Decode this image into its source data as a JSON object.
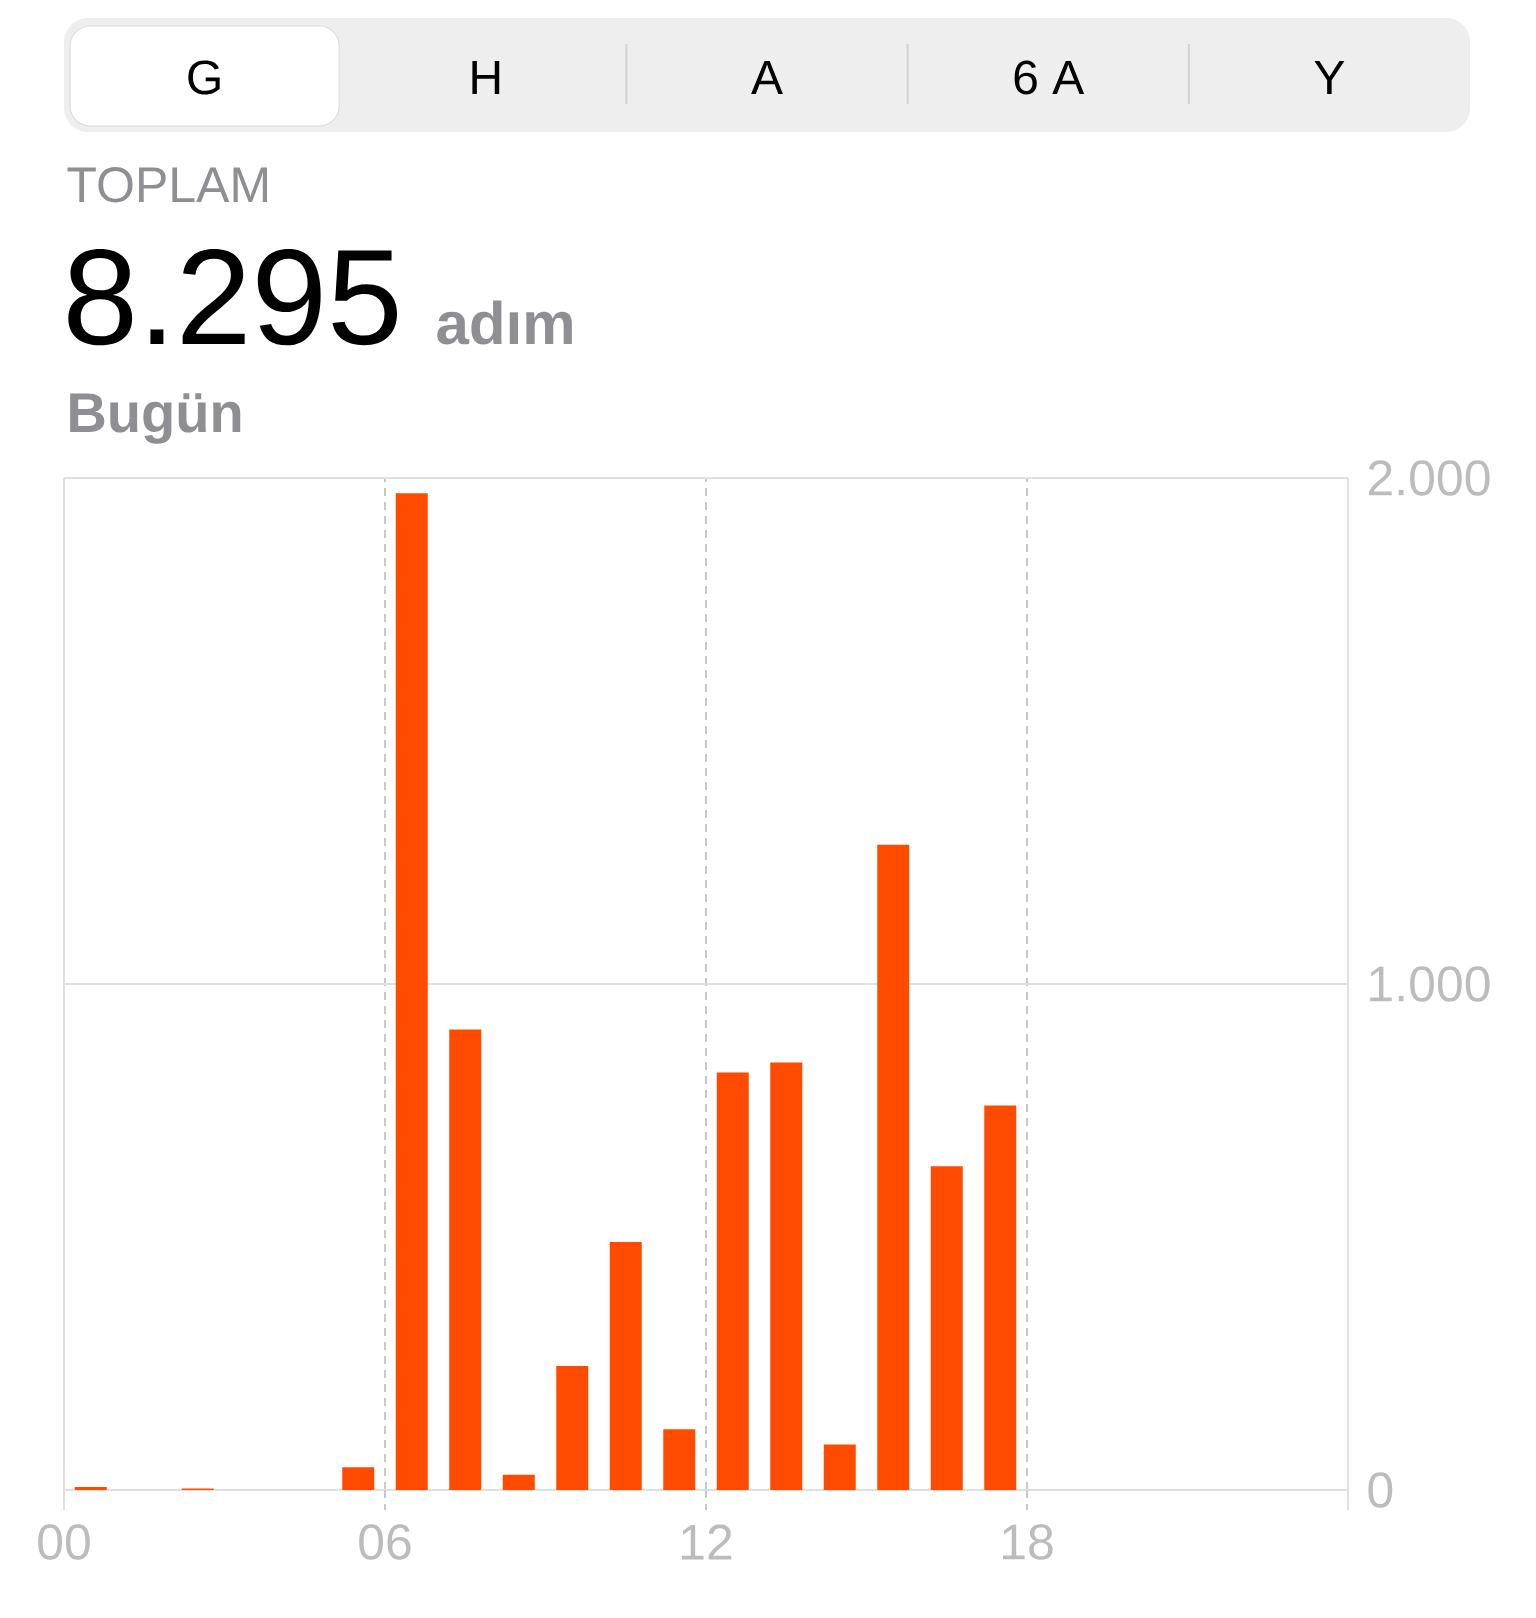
{
  "chart_data": {
    "type": "bar",
    "title": "8.295",
    "subtitle": "Bugün",
    "annotations": [
      "G",
      "H",
      "A",
      "6 A",
      "Y",
      "TOPLAM",
      "adım"
    ],
    "x": [
      0.5,
      2.5,
      5.5,
      6.5,
      7.5,
      8.5,
      9.5,
      10.5,
      11.5,
      12.5,
      13.5,
      14.5,
      15.5,
      16.5,
      17.5
    ],
    "values": [
      6,
      3,
      45,
      1970,
      910,
      30,
      245,
      490,
      120,
      825,
      845,
      90,
      1275,
      640,
      760
    ],
    "color": "#ff4b00",
    "xlim": [
      0,
      24
    ],
    "xticks": [
      {
        "value": 0,
        "label": "00"
      },
      {
        "value": 6,
        "label": "06"
      },
      {
        "value": 12,
        "label": "12"
      },
      {
        "value": 18,
        "label": "18"
      }
    ],
    "ylim": [
      0,
      2000
    ],
    "yticks": [
      0,
      {
        "value": 1000,
        "label": "1.000"
      },
      {
        "value": 2000,
        "label": "2.000"
      }
    ],
    "ref_lines": [
      {
        "axis": "y",
        "value": 1000,
        "color": "#e0e0e0"
      }
    ],
    "grid": "x"
  }
}
